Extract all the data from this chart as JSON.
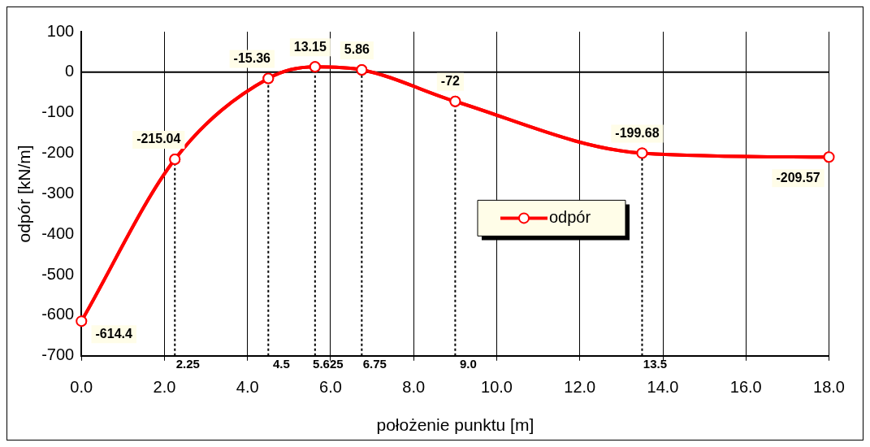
{
  "chart_data": {
    "type": "line",
    "xlabel": "położenie punktu [m]",
    "ylabel": "odpór [kN/m]",
    "x": [
      0,
      2.25,
      4.5,
      5.625,
      6.75,
      9.0,
      13.5,
      18.0
    ],
    "series": [
      {
        "name": "odpór",
        "color": "#ff0000",
        "values": [
          -614.4,
          -215.04,
          -15.36,
          13.15,
          5.86,
          -72,
          -199.68,
          -209.57
        ]
      }
    ],
    "xlim": [
      0,
      18
    ],
    "xticks": [
      {
        "value": 0,
        "label": "0.0"
      },
      {
        "value": 2,
        "label": "2.0"
      },
      {
        "value": 4,
        "label": "4.0"
      },
      {
        "value": 6,
        "label": "6.0"
      },
      {
        "value": 8,
        "label": "8.0"
      },
      {
        "value": 10,
        "label": "10.0"
      },
      {
        "value": 12,
        "label": "12.0"
      },
      {
        "value": 14,
        "label": "14.0"
      },
      {
        "value": 16,
        "label": "16.0"
      },
      {
        "value": 18,
        "label": "18.0"
      }
    ],
    "ylim": [
      -700,
      100
    ],
    "yticks": [
      -700,
      -600,
      -500,
      -400,
      -300,
      -200,
      -100,
      0,
      100
    ],
    "ref_lines": [
      {
        "axis": "y",
        "value": 0,
        "line_style": "solid"
      },
      {
        "axis": "x",
        "value": 2.25,
        "label": "2.25",
        "line_style": "dotted"
      },
      {
        "axis": "x",
        "value": 4.5,
        "label": "4.5",
        "line_style": "dotted"
      },
      {
        "axis": "x",
        "value": 5.625,
        "label": "5.625",
        "line_style": "dotted"
      },
      {
        "axis": "x",
        "value": 6.75,
        "label": "6.75",
        "line_style": "dotted"
      },
      {
        "axis": "x",
        "value": 9.0,
        "label": "9.0",
        "line_style": "dotted"
      },
      {
        "axis": "x",
        "value": 13.5,
        "label": "13.5",
        "line_style": "dotted"
      }
    ],
    "grid": "x",
    "legend": "center",
    "marker": "circle",
    "line_style": "solid",
    "data_labels": true
  }
}
